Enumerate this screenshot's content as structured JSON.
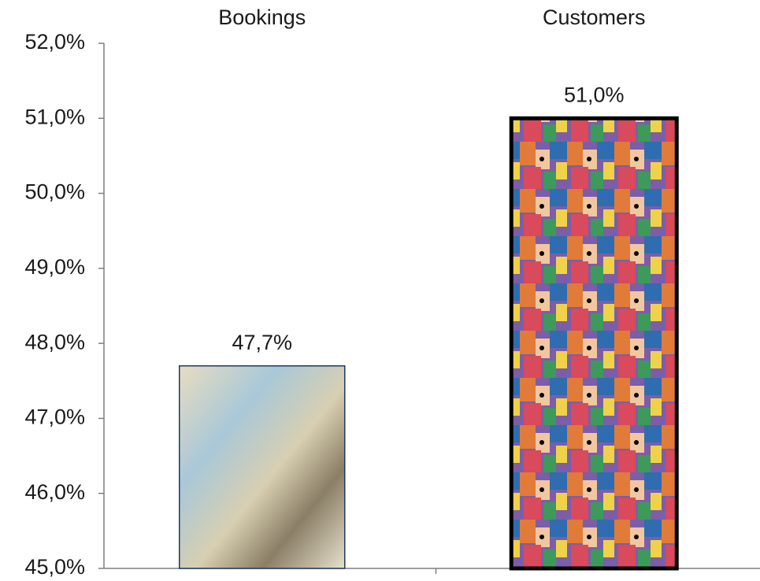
{
  "chart_data": {
    "type": "bar",
    "categories": [
      "Bookings",
      "Customers"
    ],
    "values": [
      47.7,
      51.0
    ],
    "value_labels": [
      "47,7%",
      "51,0%"
    ],
    "ylim": [
      45,
      52
    ],
    "yticks": [
      {
        "value": 45,
        "label": "45,0%"
      },
      {
        "value": 46,
        "label": "46,0%"
      },
      {
        "value": 47,
        "label": "47,0%"
      },
      {
        "value": 48,
        "label": "48,0%"
      },
      {
        "value": 49,
        "label": "49,0%"
      },
      {
        "value": 50,
        "label": "50,0%"
      },
      {
        "value": 51,
        "label": "51,0%"
      },
      {
        "value": 52,
        "label": "52,0%"
      }
    ]
  }
}
